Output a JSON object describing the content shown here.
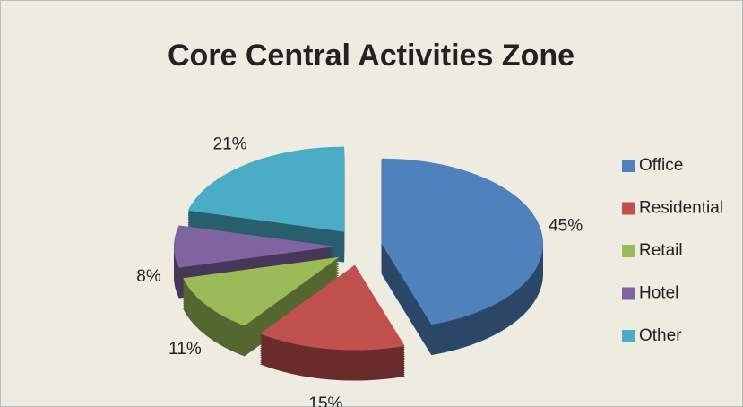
{
  "chart_data": {
    "type": "pie",
    "title": "Core Central Activities Zone",
    "categories": [
      "Office",
      "Residential",
      "Retail",
      "Hotel",
      "Other"
    ],
    "values": [
      45,
      15,
      11,
      8,
      21
    ],
    "value_labels": [
      "45%",
      "15%",
      "11%",
      "8%",
      "21%"
    ],
    "colors": [
      "#4f81bd",
      "#c0504d",
      "#9bbb59",
      "#8064a2",
      "#4bacc6"
    ],
    "legend": "right"
  }
}
